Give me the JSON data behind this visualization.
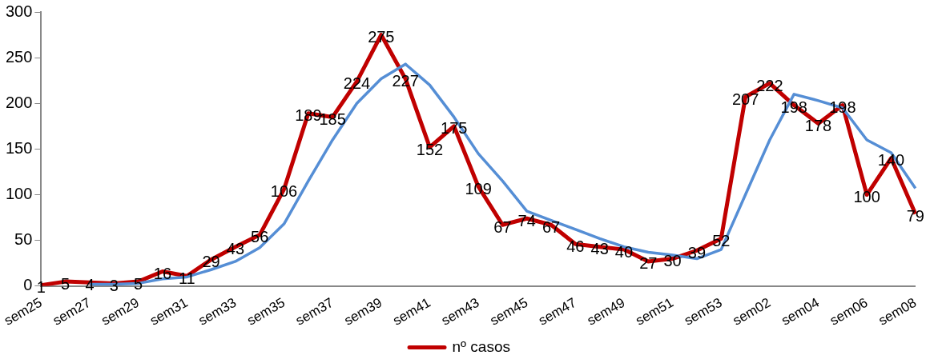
{
  "chart_data": {
    "type": "line",
    "categories": [
      "sem25",
      null,
      "sem27",
      null,
      "sem29",
      null,
      "sem31",
      null,
      "sem33",
      null,
      "sem35",
      null,
      "sem37",
      null,
      "sem39",
      null,
      "sem41",
      null,
      "sem43",
      null,
      "sem45",
      null,
      "sem47",
      null,
      "sem49",
      null,
      "sem51",
      null,
      "sem53",
      null,
      "sem02",
      null,
      "sem04",
      null,
      "sem06",
      null,
      "sem08"
    ],
    "series": [
      {
        "name": "nº casos",
        "color": "#c00000",
        "values": [
          1,
          5,
          4,
          3,
          5,
          16,
          11,
          29,
          43,
          56,
          106,
          189,
          185,
          224,
          275,
          227,
          152,
          175,
          109,
          67,
          74,
          67,
          46,
          43,
          40,
          27,
          30,
          39,
          52,
          207,
          222,
          198,
          178,
          198,
          100,
          140,
          79
        ],
        "value_labels": [
          "1",
          "5",
          "4",
          "3",
          "5",
          "16",
          "11",
          "29",
          "43",
          "56",
          "106",
          "189",
          "185",
          "224",
          "275",
          "227",
          "152",
          "175",
          "109",
          "67",
          "74",
          "67",
          "46",
          "43",
          "40",
          "27",
          "30",
          "39",
          "52",
          "207",
          "222",
          "198",
          "178",
          "198",
          "100",
          "140",
          "79"
        ]
      },
      {
        "type": "line",
        "color": "#558ed5",
        "values": [
          null,
          null,
          2,
          2,
          3,
          8,
          10,
          18,
          27,
          42,
          68,
          115,
          160,
          200,
          227,
          243,
          220,
          185,
          145,
          115,
          82,
          72,
          62,
          52,
          43,
          37,
          34,
          30,
          40,
          100,
          160,
          210,
          203,
          195,
          160,
          146,
          107
        ]
      }
    ],
    "ylim": [
      0,
      300
    ],
    "yticks": [
      0,
      50,
      100,
      150,
      200,
      250,
      300
    ],
    "grid": false,
    "legend": "bottom",
    "marker": "none"
  }
}
